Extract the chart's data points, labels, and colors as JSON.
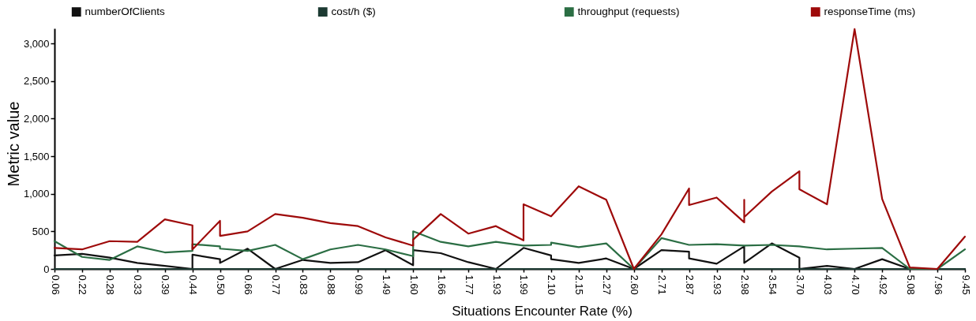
{
  "chart_data": {
    "type": "line",
    "xlabel": "Situations Encounter Rate (%)",
    "ylabel": "Metric value",
    "categories": [
      "0.06",
      "0.22",
      "0.28",
      "0.33",
      "0.39",
      "0.44",
      "0.50",
      "0.66",
      "0.77",
      "0.83",
      "0.88",
      "0.99",
      "1.49",
      "1.60",
      "1.66",
      "1.77",
      "1.93",
      "1.99",
      "2.10",
      "2.15",
      "2.27",
      "2.60",
      "2.71",
      "2.87",
      "2.93",
      "2.98",
      "3.54",
      "3.70",
      "4.03",
      "4.70",
      "4.92",
      "5.08",
      "7.96",
      "9.45"
    ],
    "ylim": [
      0,
      3200
    ],
    "yticks": [
      0,
      500,
      {
        "value": 1000,
        "label": "1,000"
      },
      {
        "value": 1500,
        "label": "1,500"
      },
      {
        "value": 2000,
        "label": "2,000"
      },
      {
        "value": 2500,
        "label": "2,500"
      },
      {
        "value": 3000,
        "label": "3,000"
      }
    ],
    "legend": "top",
    "series": [
      {
        "name": "numberOfClients",
        "color": "#111111",
        "x": [
          "0.06",
          "0.22",
          "0.28",
          "0.33",
          "0.39",
          "0.44",
          "0.44",
          "0.50",
          "0.50",
          "0.66",
          "0.77",
          "0.83",
          "0.88",
          "0.99",
          "1.49",
          "1.60",
          "1.60",
          "1.66",
          "1.77",
          "1.93",
          "1.99",
          "1.99",
          "2.10",
          "2.10",
          "2.15",
          "2.27",
          "2.60",
          "2.71",
          "2.87",
          "2.87",
          "2.93",
          "2.98",
          "2.98",
          "2.98",
          "3.54",
          "3.70",
          "3.70",
          "4.03",
          "4.70",
          "4.92",
          "5.08",
          "7.96",
          "9.45"
        ],
        "values": [
          180,
          200,
          150,
          80,
          40,
          0,
          190,
          130,
          80,
          270,
          0,
          120,
          80,
          90,
          250,
          50,
          250,
          210,
          90,
          0,
          280,
          280,
          180,
          130,
          80,
          140,
          0,
          250,
          230,
          140,
          70,
          300,
          80,
          80,
          340,
          150,
          0,
          40,
          0,
          130,
          0,
          0,
          0
        ]
      },
      {
        "name": "cost/h ($)",
        "color": "#1c3a32",
        "x": [
          "0.06",
          "0.22",
          "0.28",
          "0.33",
          "0.39",
          "0.44",
          "0.44",
          "0.50",
          "0.50",
          "0.66",
          "0.77",
          "0.83",
          "0.88",
          "0.99",
          "1.49",
          "1.60",
          "1.60",
          "1.66",
          "1.77",
          "1.93",
          "1.99",
          "1.99",
          "2.10",
          "2.10",
          "2.15",
          "2.27",
          "2.60",
          "2.71",
          "2.87",
          "2.87",
          "2.93",
          "2.98",
          "2.98",
          "2.98",
          "3.54",
          "3.70",
          "3.70",
          "4.03",
          "4.70",
          "4.92",
          "5.08",
          "7.96",
          "9.45"
        ],
        "values": [
          0,
          0,
          0,
          0,
          0,
          0,
          0,
          0,
          0,
          0,
          0,
          0,
          0,
          0,
          0,
          0,
          0,
          0,
          0,
          0,
          0,
          0,
          0,
          0,
          0,
          0,
          0,
          0,
          0,
          0,
          0,
          0,
          0,
          0,
          0,
          0,
          0,
          0,
          0,
          0,
          0,
          0,
          0
        ]
      },
      {
        "name": "throughput (requests)",
        "color": "#2b6e44",
        "x": [
          "0.06",
          "0.22",
          "0.28",
          "0.33",
          "0.39",
          "0.44",
          "0.44",
          "0.50",
          "0.50",
          "0.66",
          "0.77",
          "0.83",
          "0.88",
          "0.99",
          "1.49",
          "1.60",
          "1.60",
          "1.66",
          "1.77",
          "1.93",
          "1.99",
          "1.99",
          "2.10",
          "2.10",
          "2.15",
          "2.27",
          "2.60",
          "2.71",
          "2.87",
          "2.87",
          "2.93",
          "2.98",
          "2.98",
          "2.98",
          "3.54",
          "3.70",
          "3.70",
          "4.03",
          "4.70",
          "4.92",
          "5.08",
          "7.96",
          "9.45"
        ],
        "values": [
          370,
          160,
          120,
          300,
          220,
          240,
          330,
          300,
          270,
          240,
          320,
          130,
          260,
          320,
          260,
          170,
          500,
          360,
          300,
          360,
          310,
          310,
          320,
          350,
          290,
          340,
          0,
          410,
          320,
          320,
          330,
          310,
          310,
          310,
          320,
          300,
          300,
          260,
          270,
          280,
          0,
          0,
          260
        ]
      },
      {
        "name": "responseTime (ms)",
        "color": "#9e0a0a",
        "x": [
          "0.06",
          "0.22",
          "0.28",
          "0.33",
          "0.39",
          "0.44",
          "0.44",
          "0.50",
          "0.50",
          "0.66",
          "0.77",
          "0.83",
          "0.88",
          "0.99",
          "1.49",
          "1.60",
          "1.60",
          "1.66",
          "1.77",
          "1.93",
          "1.99",
          "1.99",
          "2.10",
          "2.10",
          "2.15",
          "2.27",
          "2.60",
          "2.71",
          "2.87",
          "2.87",
          "2.93",
          "2.98",
          "2.98",
          "2.98",
          "3.54",
          "3.70",
          "3.70",
          "4.03",
          "4.70",
          "4.92",
          "5.08",
          "7.96",
          "9.45"
        ],
        "values": [
          280,
          260,
          370,
          360,
          660,
          580,
          260,
          640,
          440,
          500,
          730,
          680,
          610,
          570,
          420,
          310,
          390,
          730,
          470,
          570,
          380,
          860,
          700,
          700,
          1100,
          920,
          0,
          460,
          1070,
          850,
          950,
          620,
          920,
          690,
          1030,
          1300,
          1060,
          860,
          3190,
          930,
          20,
          0,
          430
        ]
      }
    ]
  }
}
